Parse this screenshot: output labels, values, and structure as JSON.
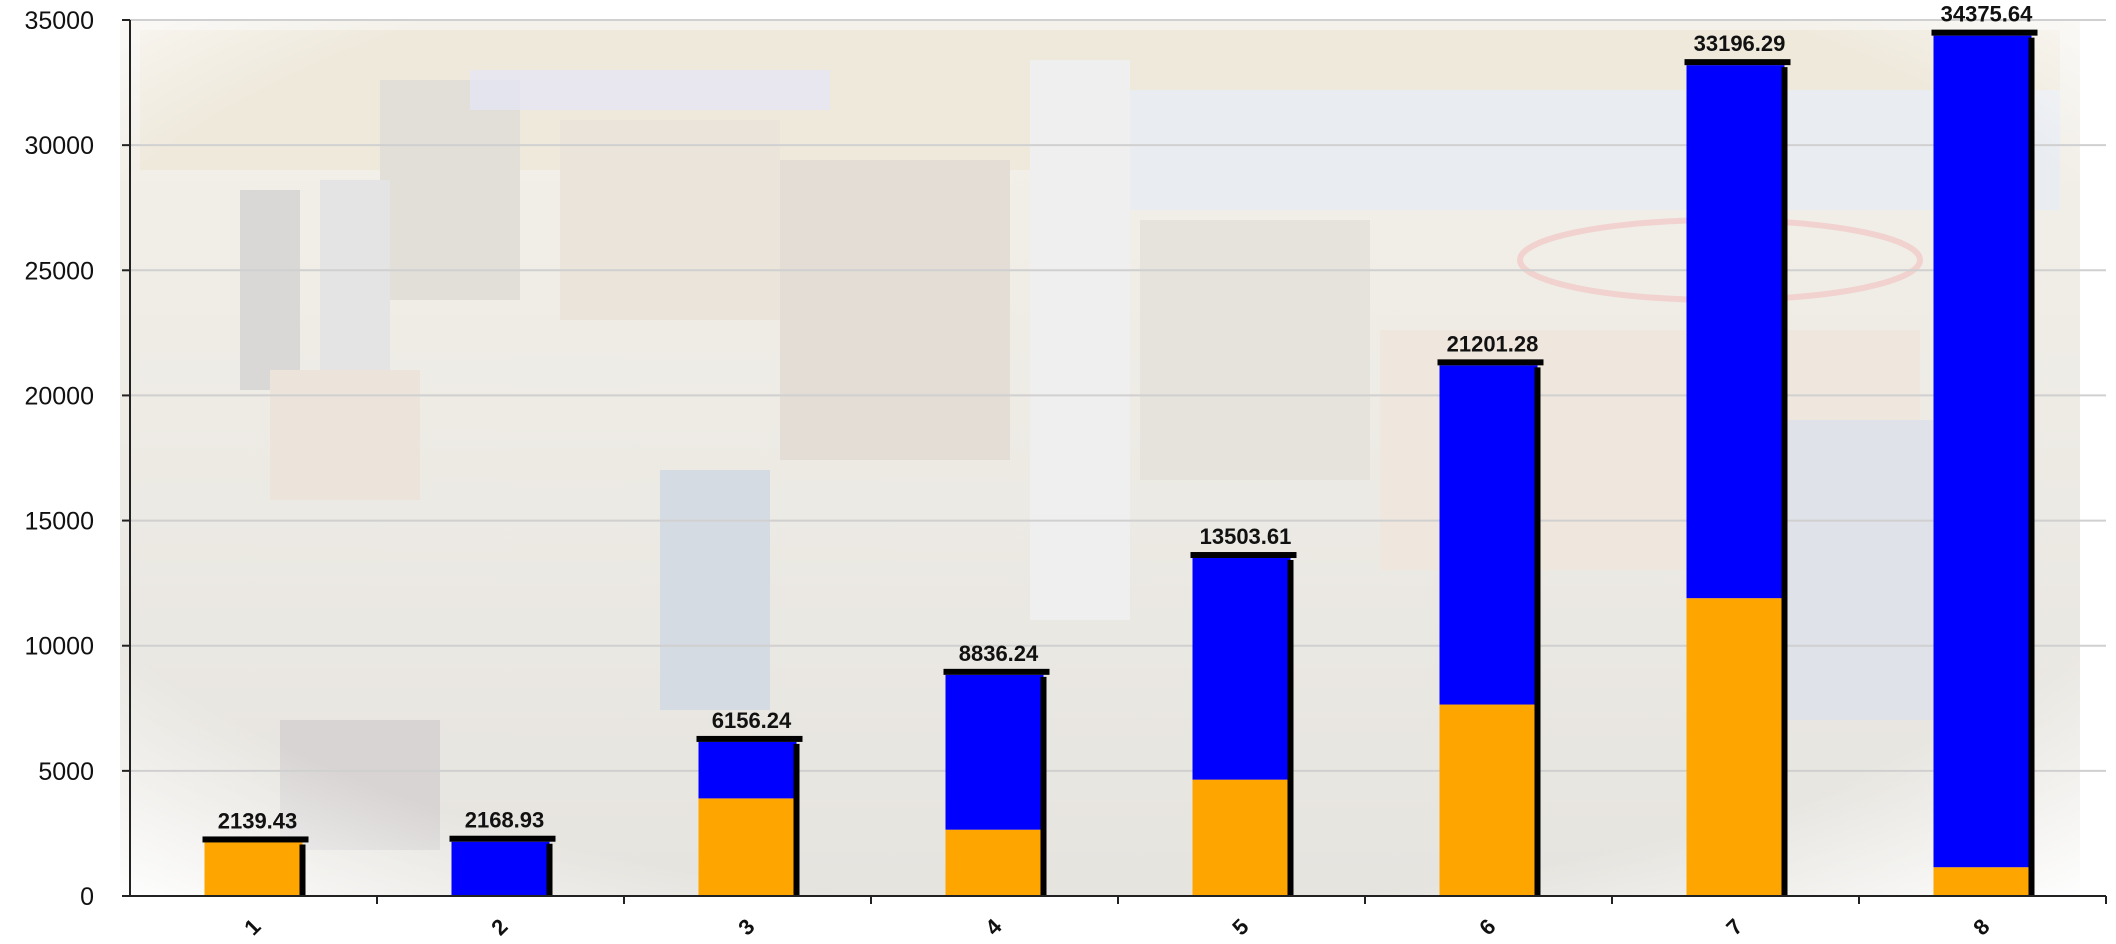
{
  "chart_data": {
    "type": "bar",
    "stacked": true,
    "categories": [
      "1",
      "2",
      "3",
      "4",
      "5",
      "6",
      "7",
      "8"
    ],
    "series": [
      {
        "color": "#FFA500",
        "values": [
          2139.43,
          0,
          3900,
          2650,
          4650,
          7650,
          11900,
          1150
        ]
      },
      {
        "color": "#0000FF",
        "values": [
          0,
          2168.93,
          2256.24,
          6186.24,
          8853.61,
          13551.28,
          21296.29,
          33225.64
        ]
      }
    ],
    "totals": [
      "2139.43",
      "2168.93",
      "6156.24",
      "8836.24",
      "13503.61",
      "21201.28",
      "33196.29",
      "34375.64"
    ],
    "ylim": [
      0,
      35000
    ],
    "yticks": [
      "0",
      "5000",
      "10000",
      "15000",
      "20000",
      "25000",
      "30000",
      "35000"
    ],
    "grid": true,
    "background": "photo of an airport duty-free shop with a faded, ragged border"
  }
}
